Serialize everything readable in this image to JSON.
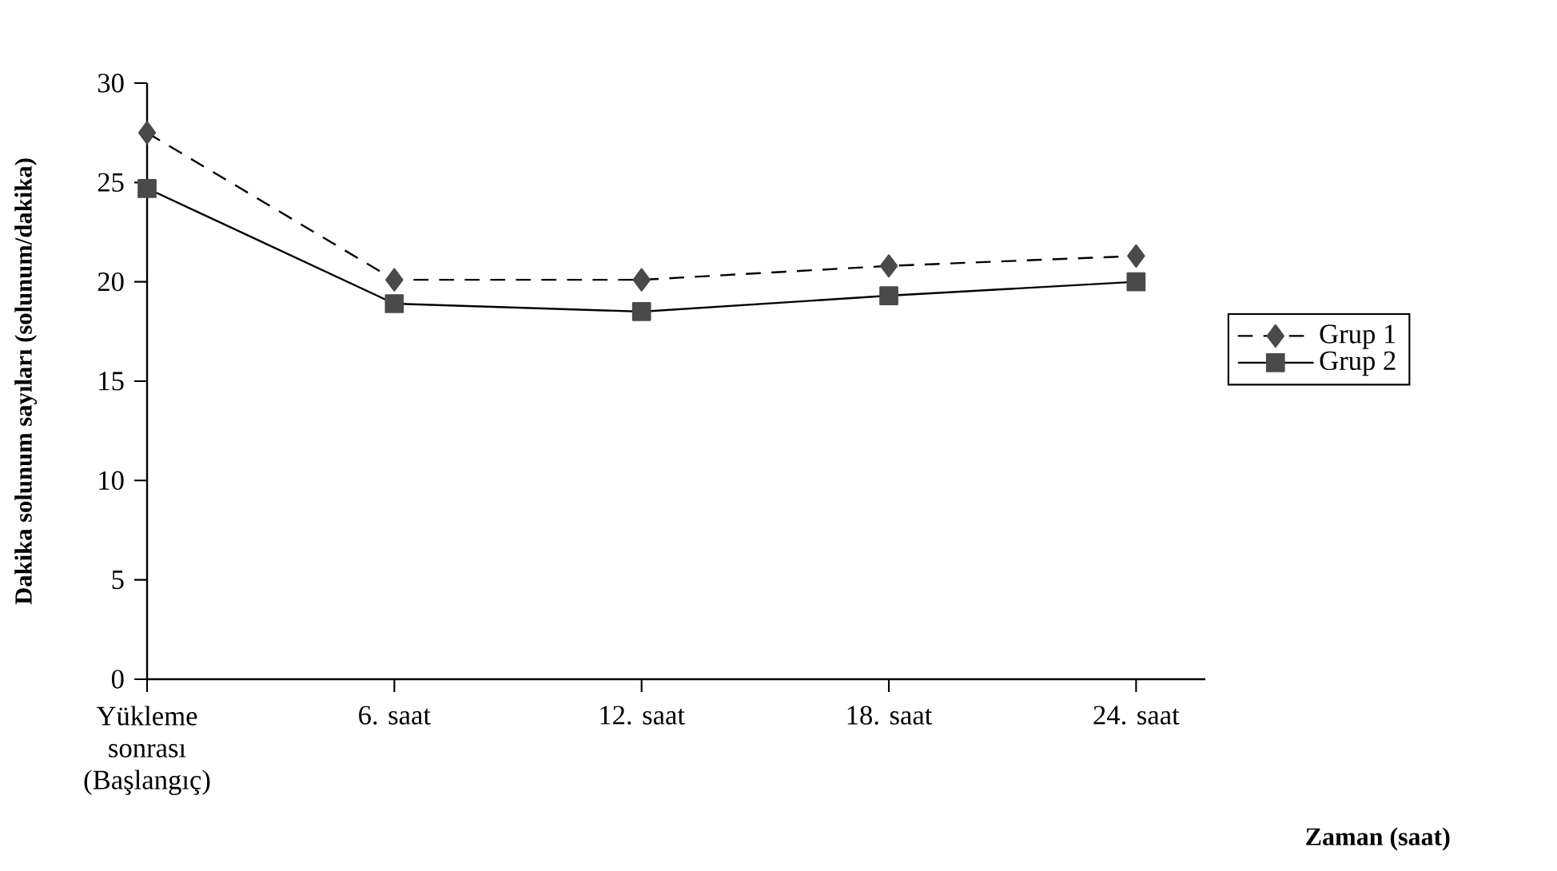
{
  "chart_data": {
    "type": "line",
    "xlabel": "Zaman (saat)",
    "ylabel": "Dakika solunum sayıları (solunum/dakika)",
    "categories": [
      "Yükleme sonrası (Başlangıç)",
      "6. saat",
      "12. saat",
      "18. saat",
      "24. saat"
    ],
    "ylim": [
      0,
      30
    ],
    "yticks": [
      0,
      5,
      10,
      15,
      20,
      25,
      30
    ],
    "grid": false,
    "legend": "right",
    "series": [
      {
        "name": "Grup 1",
        "color": "#4a4a4a",
        "marker": "diamond",
        "line_style": "dashed",
        "values": [
          27.5,
          20.1,
          20.1,
          20.8,
          21.3
        ]
      },
      {
        "name": "Grup 2",
        "color": "#4a4a4a",
        "marker": "square",
        "line_style": "solid",
        "values": [
          24.7,
          18.9,
          18.5,
          19.3,
          20.0
        ]
      }
    ]
  }
}
